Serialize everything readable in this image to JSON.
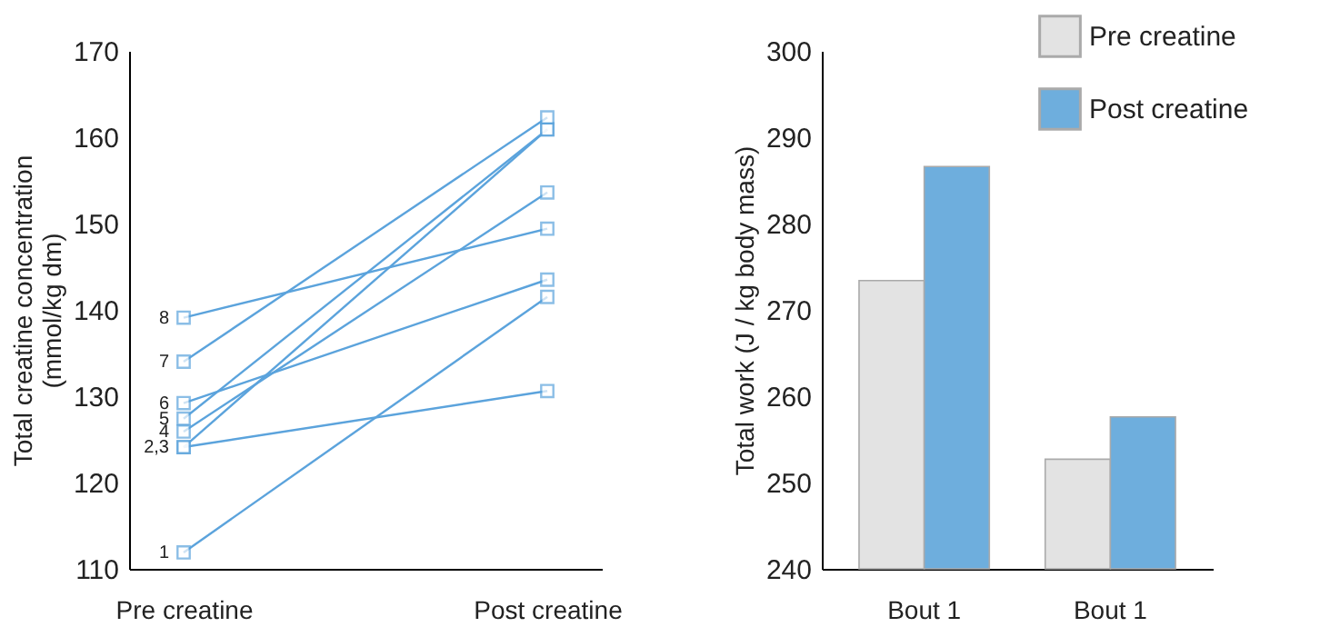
{
  "chart_data": [
    {
      "type": "line",
      "ylabel": "Total creatine concentration\n(mmol/kg dm)",
      "categories": [
        "Pre creatine",
        "Post creatine"
      ],
      "ylim": [
        110,
        170
      ],
      "yticks": [
        110,
        120,
        130,
        140,
        150,
        160,
        170
      ],
      "grid": false,
      "marker": "square",
      "line_style": "solid",
      "series": [
        {
          "name": "1",
          "color": "#5ba3dc",
          "values": [
            111.9,
            141.5
          ]
        },
        {
          "name": "2,3",
          "color": "#5ba3dc",
          "values": [
            124.1,
            130.6
          ]
        },
        {
          "color": "#5ba3dc",
          "values": [
            124.1,
            160.9
          ]
        },
        {
          "name": "4",
          "color": "#5ba3dc",
          "values": [
            125.9,
            153.6
          ]
        },
        {
          "name": "5",
          "color": "#5ba3dc",
          "values": [
            127.4,
            160.9
          ]
        },
        {
          "name": "6",
          "color": "#5ba3dc",
          "values": [
            129.2,
            143.5
          ]
        },
        {
          "name": "7",
          "color": "#5ba3dc",
          "values": [
            134.0,
            162.3
          ]
        },
        {
          "name": "8",
          "color": "#5ba3dc",
          "values": [
            139.1,
            149.4
          ]
        }
      ]
    },
    {
      "type": "bar",
      "ylabel": "Total work (J / kg body mass)",
      "categories": [
        "Bout 1",
        "Bout 1"
      ],
      "ylim": [
        240,
        300
      ],
      "yticks": [
        240,
        250,
        260,
        270,
        280,
        290,
        300
      ],
      "grid": false,
      "legend": "top right",
      "series": [
        {
          "name": "Pre creatine",
          "color": "#e3e3e3",
          "values": [
            273.4,
            252.7
          ]
        },
        {
          "name": "Post creatine",
          "color": "#6eaedd",
          "values": [
            286.6,
            257.6
          ]
        }
      ]
    }
  ]
}
